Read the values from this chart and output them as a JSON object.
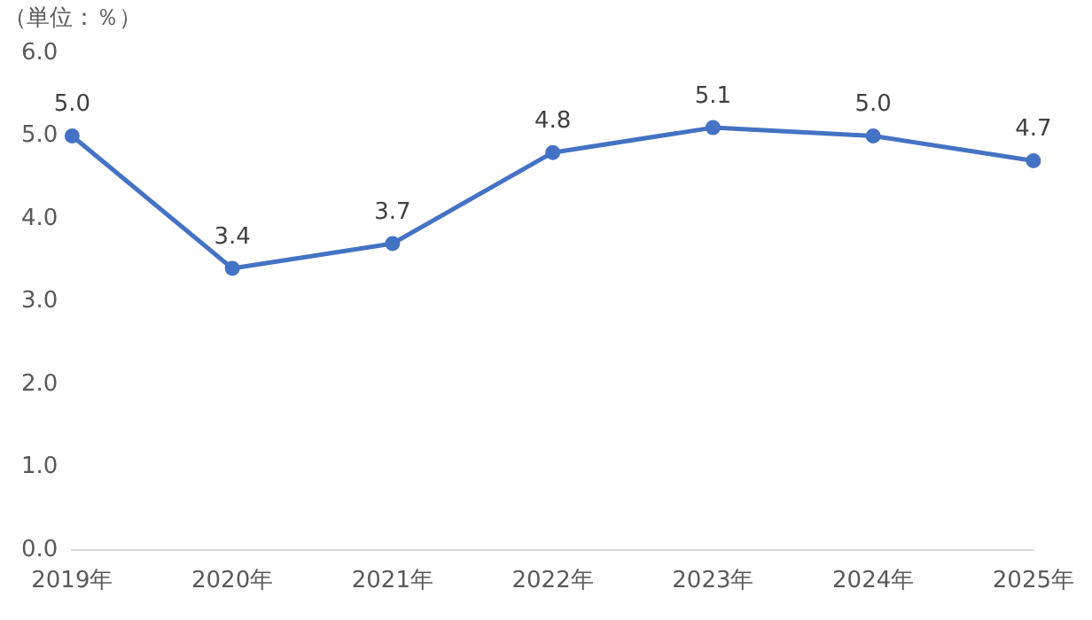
{
  "chart_data": {
    "type": "line",
    "ylabel": "（単位：％）",
    "categories": [
      "2019年",
      "2020年",
      "2021年",
      "2022年",
      "2023年",
      "2024年",
      "2025年"
    ],
    "series": [
      {
        "color": "#4472c4",
        "values": [
          5.0,
          3.4,
          3.7,
          4.8,
          5.1,
          5.0,
          4.7
        ],
        "value_labels": [
          "5.0",
          "3.4",
          "3.7",
          "4.8",
          "5.1",
          "5.0",
          "4.7"
        ]
      }
    ],
    "ylim": [
      0,
      6
    ],
    "yticks": [
      {
        "value": 0,
        "label": "0.0"
      },
      {
        "value": 1,
        "label": "1.0"
      },
      {
        "value": 2,
        "label": "2.0"
      },
      {
        "value": 3,
        "label": "3.0"
      },
      {
        "value": 4,
        "label": "4.0"
      },
      {
        "value": 5,
        "label": "5.0"
      },
      {
        "value": 6,
        "label": "6.0"
      }
    ],
    "grid": false,
    "legend": false,
    "marker": "circle",
    "line_style": "solid"
  }
}
